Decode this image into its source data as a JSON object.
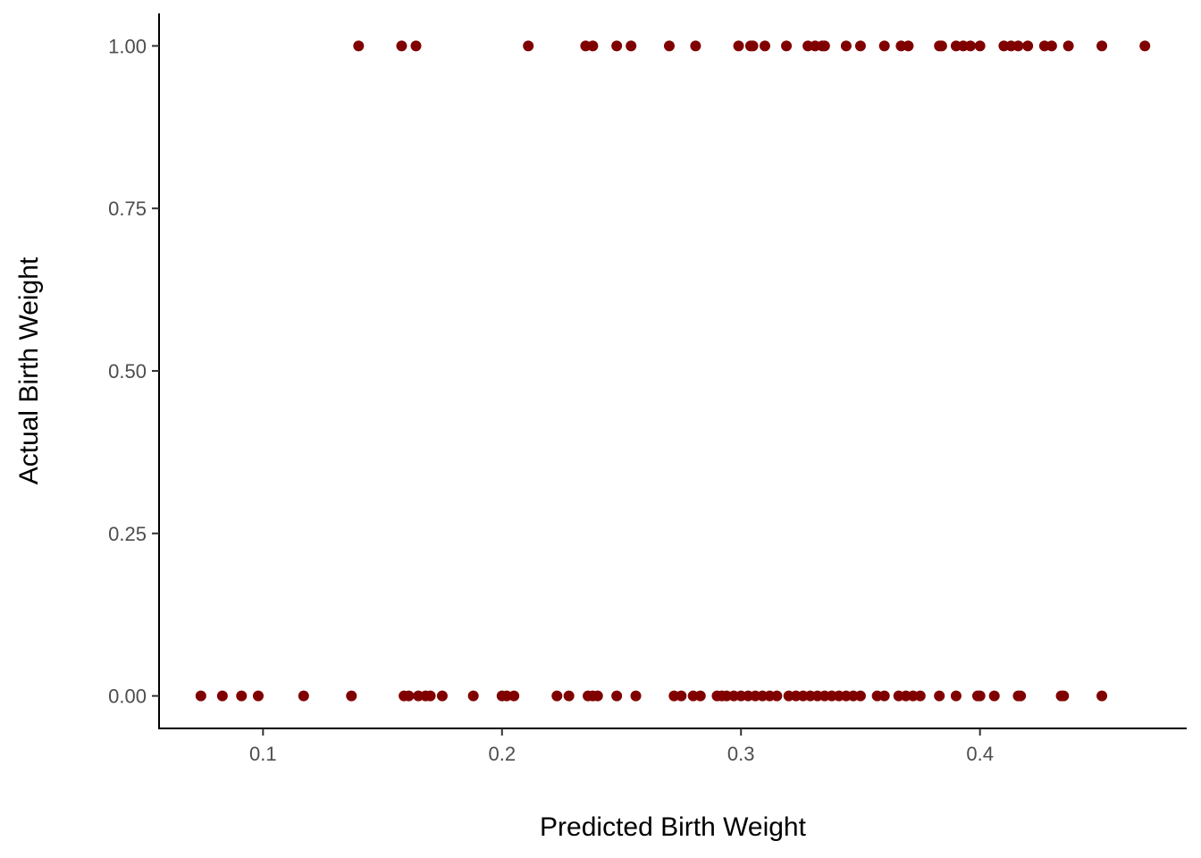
{
  "chart_data": {
    "type": "scatter",
    "title": "",
    "xlabel": "Predicted Birth Weight",
    "ylabel": "Actual Birth Weight",
    "xlim": [
      0.0565,
      0.4865
    ],
    "ylim": [
      -0.05,
      1.05
    ],
    "xticks": [
      0.1,
      0.2,
      0.3,
      0.4
    ],
    "xtick_labels": [
      "0.1",
      "0.2",
      "0.3",
      "0.4"
    ],
    "yticks": [
      0.0,
      0.25,
      0.5,
      0.75,
      1.0
    ],
    "ytick_labels": [
      "0.00",
      "0.25",
      "0.50",
      "0.75",
      "1.00"
    ],
    "grid": false,
    "point_color": "#800000",
    "series": [
      {
        "y": 1,
        "x": [
          0.14,
          0.158,
          0.164,
          0.211,
          0.235,
          0.238,
          0.248,
          0.254,
          0.27,
          0.281,
          0.299,
          0.304,
          0.305,
          0.31,
          0.319,
          0.328,
          0.331,
          0.334,
          0.335,
          0.344,
          0.35,
          0.36,
          0.367,
          0.37,
          0.383,
          0.384,
          0.39,
          0.393,
          0.396,
          0.4,
          0.41,
          0.413,
          0.416,
          0.42,
          0.427,
          0.43,
          0.437,
          0.451,
          0.469
        ]
      },
      {
        "y": 0,
        "x": [
          0.074,
          0.083,
          0.091,
          0.098,
          0.117,
          0.137,
          0.159,
          0.161,
          0.165,
          0.168,
          0.17,
          0.175,
          0.188,
          0.2,
          0.202,
          0.205,
          0.223,
          0.228,
          0.236,
          0.238,
          0.24,
          0.248,
          0.256,
          0.272,
          0.275,
          0.28,
          0.283,
          0.29,
          0.292,
          0.294,
          0.297,
          0.3,
          0.303,
          0.306,
          0.309,
          0.312,
          0.315,
          0.32,
          0.323,
          0.326,
          0.329,
          0.332,
          0.335,
          0.338,
          0.341,
          0.344,
          0.347,
          0.35,
          0.357,
          0.36,
          0.366,
          0.369,
          0.372,
          0.375,
          0.383,
          0.39,
          0.399,
          0.4,
          0.406,
          0.416,
          0.417,
          0.434,
          0.435,
          0.451
        ]
      }
    ]
  }
}
